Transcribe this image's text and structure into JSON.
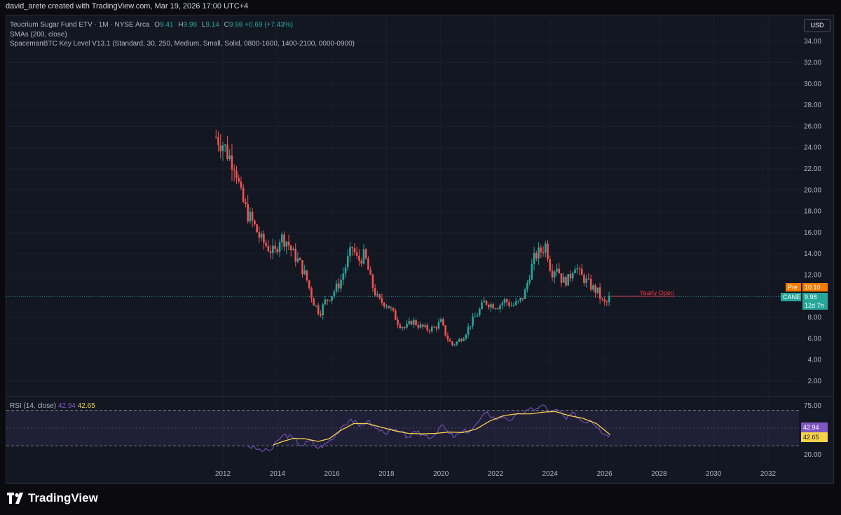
{
  "header": {
    "credit": "david_arete created with TradingView.com, Mar 19, 2026 17:00 UTC+4"
  },
  "legend": {
    "symbol_line": "Teucrium Sugar Fund ETV · 1M · NYSE Arca",
    "o_label": "O",
    "o_value": "9.41",
    "h_label": "H",
    "h_value": "9.98",
    "l_label": "L",
    "l_value": "9.14",
    "c_label": "C",
    "c_value": "9.98",
    "change": "+0.69 (+7.43%)",
    "sma": "SMAs (200, close)",
    "indicator": "SpacemanBTC Key Level V13.1 (Standard, 30, 250, Medium, Small, Solid, 0800-1600, 1400-2100, 0000-0900)",
    "rsi_label": "RSI (14, close)",
    "rsi_value": "42.94",
    "rsi_ma_value": "42.65"
  },
  "currency_button": "USD",
  "price_tags": {
    "pre_label": "Pre",
    "pre_value": "10.10",
    "symbol": "CANE",
    "last_value": "9.98",
    "countdown": "12d 7h"
  },
  "rsi_tags": {
    "rsi": "42.94",
    "rsi_ma": "42.65"
  },
  "brand": {
    "name": "TradingView"
  },
  "colors": {
    "up": "#26a69a",
    "down": "#ef5350",
    "rsi": "#7e57c2",
    "rsi_ma": "#f7d34a",
    "pre": "#f57c00",
    "key_level": "#f23645"
  },
  "chart_data": [
    {
      "type": "candlestick",
      "title": "Teucrium Sugar Fund ETV · 1M · NYSE Arca",
      "x_ticks": [
        "2012",
        "2014",
        "2016",
        "2018",
        "2020",
        "2022",
        "2024",
        "2026",
        "2028",
        "2030",
        "2032"
      ],
      "y_ticks": [
        "34.00",
        "32.00",
        "30.00",
        "28.00",
        "26.00",
        "24.00",
        "22.00",
        "20.00",
        "18.00",
        "16.00",
        "14.00",
        "12.00",
        "10.00",
        "8.00",
        "6.00",
        "4.00",
        "2.00"
      ],
      "ylim": [
        0.5,
        35.2
      ],
      "xlim": [
        2010.5,
        2033.8
      ],
      "close_path": [
        [
          2011.75,
          25.0
        ],
        [
          2012.0,
          24.4
        ],
        [
          2012.2,
          23.3
        ],
        [
          2012.45,
          22.5
        ],
        [
          2012.65,
          19.5
        ],
        [
          2012.9,
          17.8
        ],
        [
          2013.1,
          16.9
        ],
        [
          2013.4,
          15.3
        ],
        [
          2013.7,
          14.5
        ],
        [
          2013.9,
          14.0
        ],
        [
          2014.1,
          15.6
        ],
        [
          2014.35,
          15.2
        ],
        [
          2014.55,
          14.1
        ],
        [
          2014.8,
          13.2
        ],
        [
          2015.05,
          11.8
        ],
        [
          2015.3,
          9.6
        ],
        [
          2015.55,
          8.4
        ],
        [
          2015.75,
          9.5
        ],
        [
          2016.0,
          10.2
        ],
        [
          2016.3,
          11.3
        ],
        [
          2016.55,
          13.2
        ],
        [
          2016.75,
          14.6
        ],
        [
          2016.95,
          13.3
        ],
        [
          2017.2,
          13.9
        ],
        [
          2017.45,
          11.2
        ],
        [
          2017.7,
          9.6
        ],
        [
          2018.0,
          9.3
        ],
        [
          2018.2,
          8.6
        ],
        [
          2018.45,
          7.4
        ],
        [
          2018.7,
          7.0
        ],
        [
          2018.95,
          7.7
        ],
        [
          2019.2,
          7.2
        ],
        [
          2019.5,
          6.9
        ],
        [
          2019.75,
          7.0
        ],
        [
          2020.0,
          7.6
        ],
        [
          2020.2,
          6.2
        ],
        [
          2020.4,
          5.4
        ],
        [
          2020.6,
          5.7
        ],
        [
          2020.85,
          6.3
        ],
        [
          2021.1,
          7.5
        ],
        [
          2021.35,
          8.4
        ],
        [
          2021.6,
          9.5
        ],
        [
          2021.85,
          9.2
        ],
        [
          2022.1,
          9.1
        ],
        [
          2022.35,
          9.6
        ],
        [
          2022.6,
          9.1
        ],
        [
          2022.85,
          9.4
        ],
        [
          2023.05,
          10.1
        ],
        [
          2023.25,
          12.1
        ],
        [
          2023.45,
          13.8
        ],
        [
          2023.65,
          14.2
        ],
        [
          2023.85,
          14.9
        ],
        [
          2024.05,
          12.2
        ],
        [
          2024.25,
          12.9
        ],
        [
          2024.45,
          11.4
        ],
        [
          2024.7,
          11.6
        ],
        [
          2024.9,
          13.1
        ],
        [
          2025.1,
          12.0
        ],
        [
          2025.3,
          11.5
        ],
        [
          2025.55,
          10.8
        ],
        [
          2025.75,
          10.4
        ],
        [
          2025.95,
          9.3
        ],
        [
          2026.1,
          9.4
        ],
        [
          2026.2,
          9.98
        ]
      ],
      "yearly_open": 10.0,
      "yearly_open_label": "Yearly Open",
      "current_price": 9.98,
      "pre_price": 10.1
    },
    {
      "type": "line",
      "title": "RSI (14, close)",
      "y_ticks": [
        "75.00",
        "20.00"
      ],
      "ylim": [
        15,
        78
      ],
      "band": [
        30,
        70
      ],
      "series": [
        {
          "name": "RSI",
          "values": [
            [
              2012.9,
              30.5
            ],
            [
              2013.2,
              27.0
            ],
            [
              2013.5,
              24.5
            ],
            [
              2013.8,
              26.0
            ],
            [
              2014.0,
              36.0
            ],
            [
              2014.3,
              43.0
            ],
            [
              2014.6,
              38.0
            ],
            [
              2014.9,
              30.0
            ],
            [
              2015.2,
              36.0
            ],
            [
              2015.5,
              27.0
            ],
            [
              2015.8,
              33.0
            ],
            [
              2016.1,
              40.0
            ],
            [
              2016.4,
              53.0
            ],
            [
              2016.7,
              60.0
            ],
            [
              2017.0,
              52.0
            ],
            [
              2017.3,
              58.0
            ],
            [
              2017.6,
              50.0
            ],
            [
              2017.9,
              45.0
            ],
            [
              2018.2,
              48.0
            ],
            [
              2018.5,
              45.0
            ],
            [
              2018.8,
              40.0
            ],
            [
              2019.1,
              45.0
            ],
            [
              2019.4,
              42.0
            ],
            [
              2019.7,
              40.0
            ],
            [
              2020.0,
              53.0
            ],
            [
              2020.3,
              44.0
            ],
            [
              2020.5,
              40.0
            ],
            [
              2020.8,
              46.0
            ],
            [
              2021.1,
              47.0
            ],
            [
              2021.4,
              58.0
            ],
            [
              2021.7,
              68.0
            ],
            [
              2022.0,
              60.0
            ],
            [
              2022.3,
              63.0
            ],
            [
              2022.6,
              59.0
            ],
            [
              2022.9,
              66.0
            ],
            [
              2023.2,
              70.0
            ],
            [
              2023.5,
              72.0
            ],
            [
              2023.75,
              76.0
            ],
            [
              2024.0,
              68.0
            ],
            [
              2024.3,
              70.0
            ],
            [
              2024.6,
              60.0
            ],
            [
              2024.9,
              67.0
            ],
            [
              2025.2,
              57.0
            ],
            [
              2025.5,
              59.0
            ],
            [
              2025.8,
              50.0
            ],
            [
              2026.0,
              43.0
            ],
            [
              2026.2,
              42.94
            ]
          ]
        },
        {
          "name": "RSI-based MA",
          "values": [
            [
              2013.85,
              31.0
            ],
            [
              2014.2,
              35.0
            ],
            [
              2014.6,
              38.5
            ],
            [
              2015.0,
              38.0
            ],
            [
              2015.5,
              35.0
            ],
            [
              2015.9,
              38.0
            ],
            [
              2016.3,
              47.0
            ],
            [
              2016.8,
              55.0
            ],
            [
              2017.3,
              55.0
            ],
            [
              2017.8,
              51.0
            ],
            [
              2018.3,
              47.0
            ],
            [
              2018.8,
              44.0
            ],
            [
              2019.3,
              43.5
            ],
            [
              2019.8,
              44.0
            ],
            [
              2020.3,
              45.5
            ],
            [
              2020.8,
              45.0
            ],
            [
              2021.3,
              49.0
            ],
            [
              2021.8,
              58.0
            ],
            [
              2022.3,
              64.0
            ],
            [
              2022.8,
              66.0
            ],
            [
              2023.3,
              66.0
            ],
            [
              2023.8,
              68.0
            ],
            [
              2024.2,
              68.5
            ],
            [
              2024.7,
              64.0
            ],
            [
              2025.2,
              61.0
            ],
            [
              2025.7,
              55.0
            ],
            [
              2026.2,
              42.65
            ]
          ]
        }
      ]
    }
  ]
}
